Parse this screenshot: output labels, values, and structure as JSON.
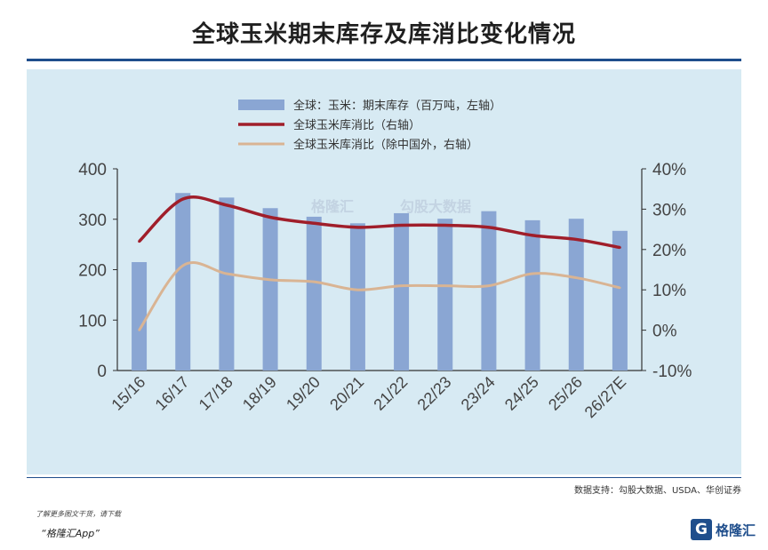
{
  "title": "全球玉米期末库存及库消比变化情况",
  "source": "数据支持：勾股大数据、USDA、华创证券",
  "footer": {
    "line1": "了解更多图文干货，请下载",
    "line2": "“格隆汇App”"
  },
  "brand": {
    "mark": "G",
    "text": "格隆汇"
  },
  "watermark": {
    "text1": "格隆汇",
    "text2": "勾股大数据"
  },
  "colors": {
    "bar": "#8aa6d3",
    "ratio_line": "#a01e2a",
    "ratio_ex_china_line": "#d9b493",
    "panel": "#d7eaf3",
    "rule": "#1f4e8c"
  },
  "chart_data": {
    "type": "bar",
    "categories": [
      "15/16",
      "16/17",
      "17/18",
      "18/19",
      "19/20",
      "20/21",
      "21/22",
      "22/23",
      "23/24",
      "24/25",
      "25/26",
      "26/27E"
    ],
    "series": [
      {
        "name": "全球：玉米：期末库存（百万吨，左轴）",
        "type": "bar",
        "axis": "left",
        "values": [
          215,
          352,
          343,
          322,
          305,
          292,
          312,
          301,
          316,
          298,
          301,
          277
        ]
      },
      {
        "name": "全球玉米库消比（右轴）",
        "type": "line",
        "axis": "right",
        "values": [
          22,
          32.5,
          31,
          28,
          26.5,
          25.5,
          26,
          26,
          25.5,
          23.5,
          22.5,
          20.5
        ]
      },
      {
        "name": "全球玉米库消比（除中国外，右轴）",
        "type": "line",
        "axis": "right",
        "values": [
          0,
          16,
          14,
          12.5,
          12,
          10,
          11,
          11,
          11,
          14,
          13,
          10.5
        ]
      }
    ],
    "left_axis": {
      "ylim": [
        0,
        400
      ],
      "ticks": [
        0,
        100,
        200,
        300,
        400
      ],
      "tick_labels": [
        "0",
        "100",
        "200",
        "300",
        "400"
      ]
    },
    "right_axis": {
      "ylim": [
        -10,
        40
      ],
      "ticks": [
        -10,
        0,
        10,
        20,
        30,
        40
      ],
      "tick_labels": [
        "-10%",
        "0%",
        "10%",
        "20%",
        "30%",
        "40%"
      ]
    },
    "legend_position": "top-center",
    "grid": false
  }
}
